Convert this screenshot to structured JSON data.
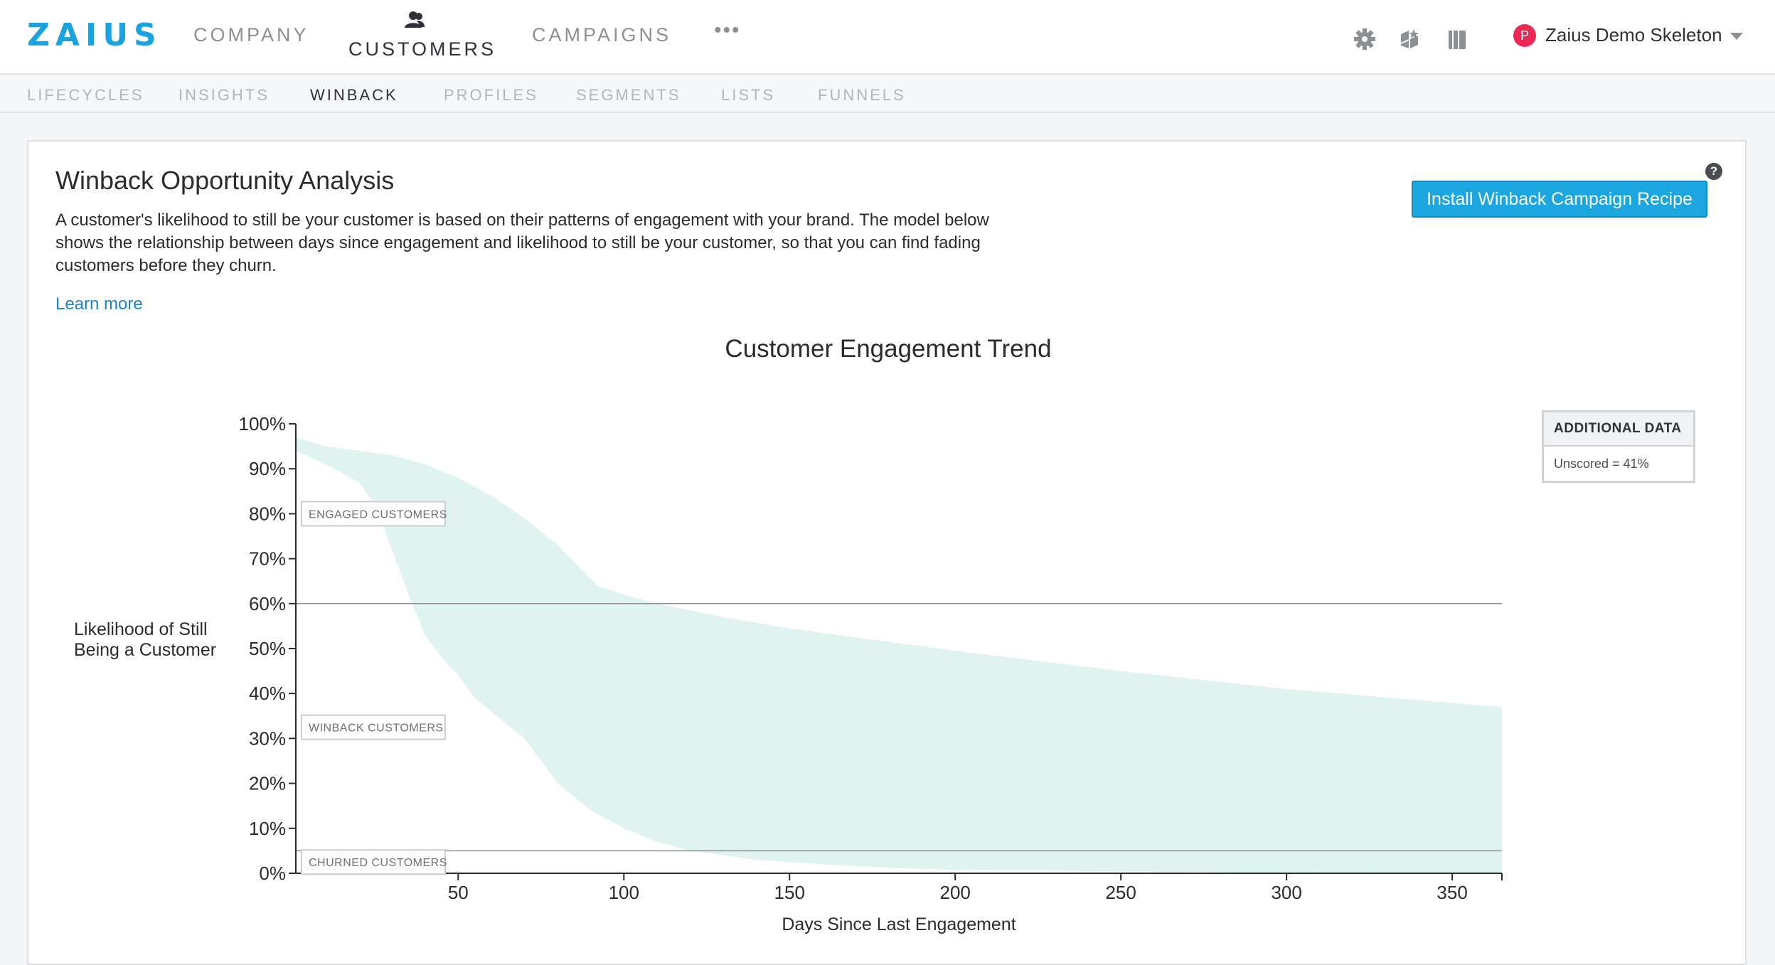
{
  "app": {
    "logo": "ZAIUS",
    "nav": [
      {
        "label": "COMPANY"
      },
      {
        "label": "CUSTOMERS"
      },
      {
        "label": "CAMPAIGNS"
      }
    ],
    "nav_more": "•••",
    "user": {
      "initial": "P",
      "name": "Zaius Demo Skeleton",
      "avatar_color": "#ea2a55"
    },
    "icons": [
      "gear-icon",
      "cube-icon",
      "book-icon",
      "person-icon",
      "caret-down-icon"
    ]
  },
  "subnav": [
    {
      "label": "LIFECYCLES"
    },
    {
      "label": "INSIGHTS"
    },
    {
      "label": "WINBACK"
    },
    {
      "label": "PROFILES"
    },
    {
      "label": "SEGMENTS"
    },
    {
      "label": "LISTS"
    },
    {
      "label": "FUNNELS"
    }
  ],
  "page": {
    "title": "Winback Opportunity Analysis",
    "description": "A customer's likelihood to still be your customer is based on their patterns of engagement with your brand. The model below shows the relationship between days since engagement and likelihood to still be your customer, so that you can find fading customers before they churn.",
    "learn_more": "Learn more",
    "install_button": "Install Winback Campaign Recipe",
    "help": "?"
  },
  "additional_data": {
    "header": "ADDITIONAL DATA",
    "value": "Unscored = 41%"
  },
  "colors": {
    "brand": "#1aa3de",
    "band_fill": "#dff3f0",
    "primary_button": "#1ba6e0",
    "link": "#1a84c7"
  },
  "chart_data": {
    "type": "area",
    "title": "Customer Engagement Trend",
    "xlabel": "Days Since Last Engagement",
    "ylabel_lines": [
      "Likelihood of Still",
      "Being a Customer"
    ],
    "xlim": [
      1,
      365
    ],
    "ylim": [
      0,
      100
    ],
    "x_ticks": [
      50,
      100,
      150,
      200,
      250,
      300,
      350
    ],
    "y_ticks": [
      0,
      10,
      20,
      30,
      40,
      50,
      60,
      70,
      80,
      90,
      100
    ],
    "y_tick_labels": [
      "0%",
      "10%",
      "20%",
      "30%",
      "40%",
      "50%",
      "60%",
      "70%",
      "80%",
      "90%",
      "100%"
    ],
    "thresholds": [
      {
        "name": "ENGAGED CUSTOMERS",
        "y": 60
      },
      {
        "name": "WINBACK CUSTOMERS",
        "y": 5
      },
      {
        "name": "CHURNED CUSTOMERS",
        "y": 0
      }
    ],
    "region_labels": [
      {
        "text": "ENGAGED CUSTOMERS",
        "y": 80
      },
      {
        "text": "WINBACK CUSTOMERS",
        "y": 32.5
      },
      {
        "text": "CHURNED CUSTOMERS",
        "y": 2.5
      }
    ],
    "band_upper": {
      "x": [
        1,
        10,
        20,
        30,
        40,
        50,
        60,
        70,
        80,
        92,
        100,
        110,
        130,
        150,
        175,
        200,
        250,
        300,
        365
      ],
      "y": [
        97,
        95,
        94,
        93,
        91,
        88,
        84,
        79,
        73,
        64,
        62,
        60,
        57,
        54.5,
        52,
        49.5,
        45,
        41,
        37
      ]
    },
    "band_lower": {
      "x": [
        1,
        10,
        15,
        20,
        25,
        30,
        35,
        40,
        45,
        50,
        55,
        60,
        70,
        80,
        90,
        100,
        110,
        120,
        140,
        160,
        180,
        200,
        250,
        300,
        365
      ],
      "y": [
        94,
        91,
        89,
        87,
        82,
        72,
        62,
        53,
        48,
        44,
        39,
        36,
        30,
        20,
        14,
        10,
        7,
        5,
        3,
        2,
        1.2,
        0.8,
        0.4,
        0.2,
        0.1
      ]
    }
  }
}
